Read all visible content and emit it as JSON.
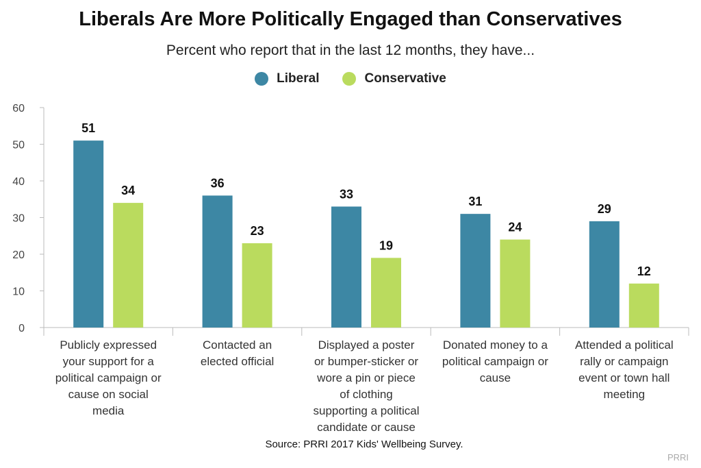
{
  "title": "Liberals Are More Politically Engaged than Conservatives",
  "subtitle": "Percent who report that in the last 12 months, they have...",
  "source": "Source: PRRI 2017 Kids' Wellbeing Survey.",
  "logo": "PRRI",
  "colors": {
    "liberal": "#3d87a4",
    "conservative": "#badb5e",
    "axis": "#bbbbbb"
  },
  "chart_data": {
    "type": "bar",
    "title": "Liberals Are More Politically Engaged than Conservatives",
    "subtitle": "Percent who report that in the last 12 months, they have...",
    "categories": [
      "Publicly expressed your support for a political campaign or cause on social media",
      "Contacted an elected official",
      "Displayed a poster or bumper-sticker or wore a pin or piece of clothing supporting a political candidate or cause",
      "Donated money to a political campaign or cause",
      "Attended a political rally or campaign event or town hall meeting"
    ],
    "category_lines": [
      [
        "Publicly expressed",
        "your support for a",
        "political campaign or",
        "cause on social",
        "media"
      ],
      [
        "Contacted an",
        "elected official"
      ],
      [
        "Displayed a poster",
        "or bumper-sticker or",
        "wore a pin or piece",
        "of clothing",
        "supporting a political",
        "candidate or cause"
      ],
      [
        "Donated money to a",
        "political campaign or",
        "cause"
      ],
      [
        "Attended a political",
        "rally or campaign",
        "event or town hall",
        "meeting"
      ]
    ],
    "series": [
      {
        "name": "Liberal",
        "values": [
          51,
          36,
          33,
          31,
          29
        ]
      },
      {
        "name": "Conservative",
        "values": [
          34,
          23,
          19,
          24,
          12
        ]
      }
    ],
    "ylim": [
      0,
      60
    ],
    "yticks": [
      0,
      10,
      20,
      30,
      40,
      50,
      60
    ],
    "legend": "top-center",
    "grid": false,
    "data_labels": true
  }
}
